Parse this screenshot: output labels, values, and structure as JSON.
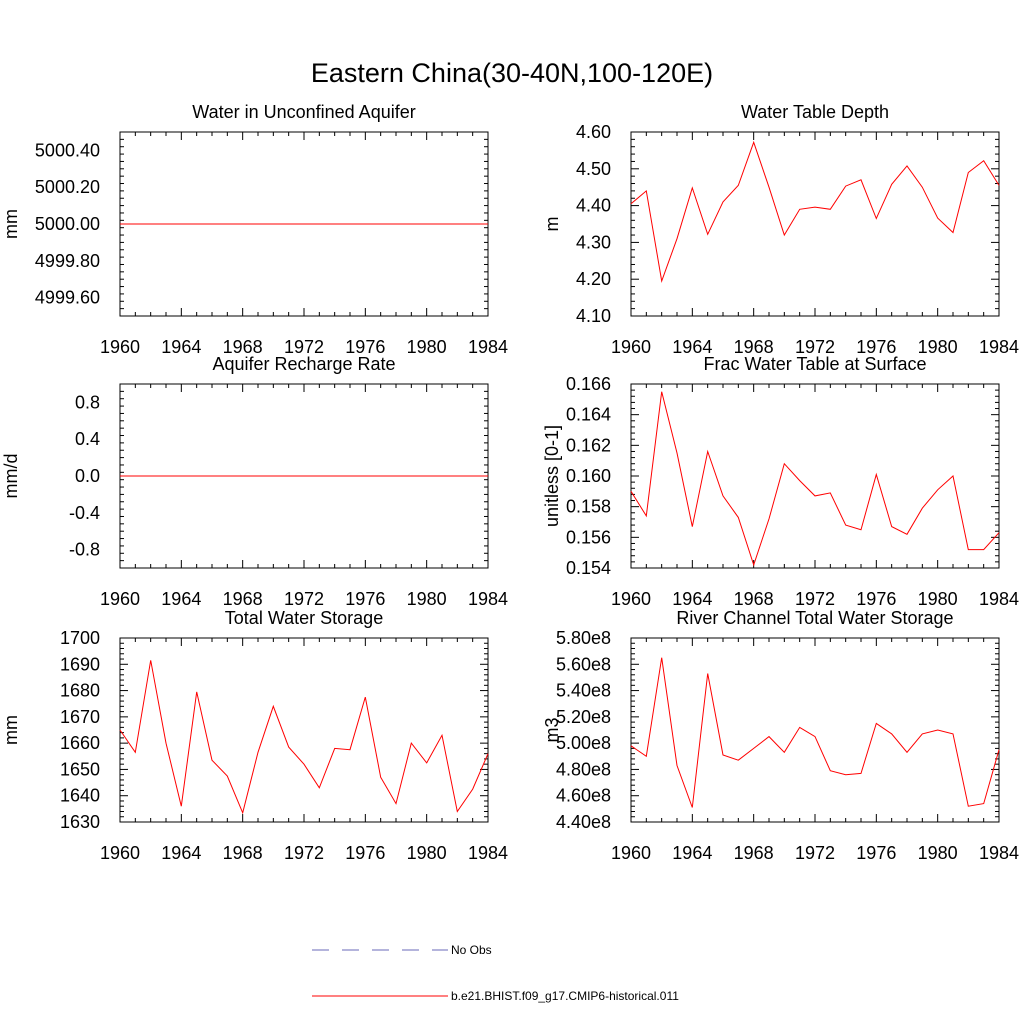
{
  "figure": {
    "title": "Eastern China(30-40N,100-120E)",
    "legend": [
      {
        "label": "No Obs",
        "color": "#6a6ab8",
        "dash": "dashed"
      },
      {
        "label": "b.e21.BHIST.f09_g17.CMIP6-historical.011",
        "color": "#ff0000",
        "dash": "solid"
      }
    ]
  },
  "chart_data": [
    {
      "type": "line",
      "title": "Water in Unconfined Aquifer",
      "xlabel": "",
      "ylabel": "mm",
      "xlim": [
        1960,
        1984
      ],
      "ylim": [
        4999.5,
        5000.5
      ],
      "xticks": [
        1960,
        1964,
        1968,
        1972,
        1976,
        1980,
        1984
      ],
      "yticks": [
        4999.6,
        4999.8,
        5000.0,
        5000.2,
        5000.4
      ],
      "ytick_labels": [
        "4999.60",
        "4999.80",
        "5000.00",
        "5000.20",
        "5000.40"
      ],
      "series": [
        {
          "color": "#ff0000",
          "x": [
            1960,
            1961,
            1962,
            1963,
            1964,
            1965,
            1966,
            1967,
            1968,
            1969,
            1970,
            1971,
            1972,
            1973,
            1974,
            1975,
            1976,
            1977,
            1978,
            1979,
            1980,
            1981,
            1982,
            1983,
            1984
          ],
          "y": [
            5000,
            5000,
            5000,
            5000,
            5000,
            5000,
            5000,
            5000,
            5000,
            5000,
            5000,
            5000,
            5000,
            5000,
            5000,
            5000,
            5000,
            5000,
            5000,
            5000,
            5000,
            5000,
            5000,
            5000,
            5000
          ]
        }
      ]
    },
    {
      "type": "line",
      "title": "Water Table Depth",
      "xlabel": "",
      "ylabel": "m",
      "xlim": [
        1960,
        1984
      ],
      "ylim": [
        4.1,
        4.6
      ],
      "xticks": [
        1960,
        1964,
        1968,
        1972,
        1976,
        1980,
        1984
      ],
      "yticks": [
        4.1,
        4.2,
        4.3,
        4.4,
        4.5,
        4.6
      ],
      "ytick_labels": [
        "4.10",
        "4.20",
        "4.30",
        "4.40",
        "4.50",
        "4.60"
      ],
      "series": [
        {
          "color": "#ff0000",
          "x": [
            1960,
            1961,
            1962,
            1963,
            1964,
            1965,
            1966,
            1967,
            1968,
            1969,
            1970,
            1971,
            1972,
            1973,
            1974,
            1975,
            1976,
            1977,
            1978,
            1979,
            1980,
            1981,
            1982,
            1983,
            1984
          ],
          "y": [
            4.405,
            4.44,
            4.195,
            4.31,
            4.448,
            4.322,
            4.41,
            4.455,
            4.572,
            4.45,
            4.32,
            4.39,
            4.396,
            4.39,
            4.453,
            4.47,
            4.365,
            4.458,
            4.508,
            4.45,
            4.366,
            4.327,
            4.49,
            4.522,
            4.455
          ]
        }
      ]
    },
    {
      "type": "line",
      "title": "Aquifer Recharge Rate",
      "xlabel": "",
      "ylabel": "mm/d",
      "xlim": [
        1960,
        1984
      ],
      "ylim": [
        -1.0,
        1.0
      ],
      "xticks": [
        1960,
        1964,
        1968,
        1972,
        1976,
        1980,
        1984
      ],
      "yticks": [
        -0.8,
        -0.4,
        0.0,
        0.4,
        0.8
      ],
      "ytick_labels": [
        "-0.8",
        "-0.4",
        "0.0",
        "0.4",
        "0.8"
      ],
      "series": [
        {
          "color": "#ff0000",
          "x": [
            1960,
            1961,
            1962,
            1963,
            1964,
            1965,
            1966,
            1967,
            1968,
            1969,
            1970,
            1971,
            1972,
            1973,
            1974,
            1975,
            1976,
            1977,
            1978,
            1979,
            1980,
            1981,
            1982,
            1983,
            1984
          ],
          "y": [
            0,
            0,
            0,
            0,
            0,
            0,
            0,
            0,
            0,
            0,
            0,
            0,
            0,
            0,
            0,
            0,
            0,
            0,
            0,
            0,
            0,
            0,
            0,
            0,
            0
          ]
        }
      ]
    },
    {
      "type": "line",
      "title": "Frac Water Table at Surface",
      "xlabel": "",
      "ylabel": "unitless [0-1]",
      "xlim": [
        1960,
        1984
      ],
      "ylim": [
        0.154,
        0.166
      ],
      "xticks": [
        1960,
        1964,
        1968,
        1972,
        1976,
        1980,
        1984
      ],
      "yticks": [
        0.154,
        0.156,
        0.158,
        0.16,
        0.162,
        0.164,
        0.166
      ],
      "ytick_labels": [
        "0.154",
        "0.156",
        "0.158",
        "0.160",
        "0.162",
        "0.164",
        "0.166"
      ],
      "series": [
        {
          "color": "#ff0000",
          "x": [
            1960,
            1961,
            1962,
            1963,
            1964,
            1965,
            1966,
            1967,
            1968,
            1969,
            1970,
            1971,
            1972,
            1973,
            1974,
            1975,
            1976,
            1977,
            1978,
            1979,
            1980,
            1981,
            1982,
            1983,
            1984
          ],
          "y": [
            0.159,
            0.1574,
            0.1655,
            0.1615,
            0.1567,
            0.1616,
            0.1587,
            0.1573,
            0.1542,
            0.1572,
            0.1608,
            0.1597,
            0.1587,
            0.1589,
            0.1568,
            0.1565,
            0.1601,
            0.1567,
            0.1562,
            0.1579,
            0.1591,
            0.16,
            0.1552,
            0.1552,
            0.1563
          ]
        }
      ]
    },
    {
      "type": "line",
      "title": "Total Water Storage",
      "xlabel": "",
      "ylabel": "mm",
      "xlim": [
        1960,
        1984
      ],
      "ylim": [
        1630,
        1700
      ],
      "xticks": [
        1960,
        1964,
        1968,
        1972,
        1976,
        1980,
        1984
      ],
      "yticks": [
        1630,
        1640,
        1650,
        1660,
        1670,
        1680,
        1690,
        1700
      ],
      "ytick_labels": [
        "1630",
        "1640",
        "1650",
        "1660",
        "1670",
        "1680",
        "1690",
        "1700"
      ],
      "series": [
        {
          "color": "#ff0000",
          "x": [
            1960,
            1961,
            1962,
            1963,
            1964,
            1965,
            1966,
            1967,
            1968,
            1969,
            1970,
            1971,
            1972,
            1973,
            1974,
            1975,
            1976,
            1977,
            1978,
            1979,
            1980,
            1981,
            1982,
            1983,
            1984
          ],
          "y": [
            1665,
            1656.5,
            1691.5,
            1660,
            1636,
            1679.5,
            1653.5,
            1647.5,
            1633.5,
            1656.5,
            1674,
            1658.5,
            1652,
            1643,
            1658,
            1657.5,
            1677.5,
            1647,
            1637,
            1660,
            1652.5,
            1663,
            1634,
            1642.5,
            1656
          ]
        }
      ]
    },
    {
      "type": "line",
      "title": "River Channel Total Water Storage",
      "xlabel": "",
      "ylabel": "m3",
      "xlim": [
        1960,
        1984
      ],
      "ylim": [
        440000000,
        580000000
      ],
      "xticks": [
        1960,
        1964,
        1968,
        1972,
        1976,
        1980,
        1984
      ],
      "yticks": [
        440000000,
        460000000,
        480000000,
        500000000,
        520000000,
        540000000,
        560000000,
        580000000
      ],
      "ytick_labels": [
        "4.40e8",
        "4.60e8",
        "4.80e8",
        "5.00e8",
        "5.20e8",
        "5.40e8",
        "5.60e8",
        "5.80e8"
      ],
      "series": [
        {
          "color": "#ff0000",
          "x": [
            1960,
            1961,
            1962,
            1963,
            1964,
            1965,
            1966,
            1967,
            1968,
            1969,
            1970,
            1971,
            1972,
            1973,
            1974,
            1975,
            1976,
            1977,
            1978,
            1979,
            1980,
            1981,
            1982,
            1983,
            1984
          ],
          "y": [
            498000000,
            490000000,
            565000000,
            483000000,
            451000000,
            553000000,
            491000000,
            487000000,
            496000000,
            505000000,
            493000000,
            512000000,
            505000000,
            479000000,
            476000000,
            477000000,
            515000000,
            507000000,
            493000000,
            507000000,
            510000000,
            507000000,
            452000000,
            454000000,
            495000000
          ]
        }
      ]
    }
  ]
}
